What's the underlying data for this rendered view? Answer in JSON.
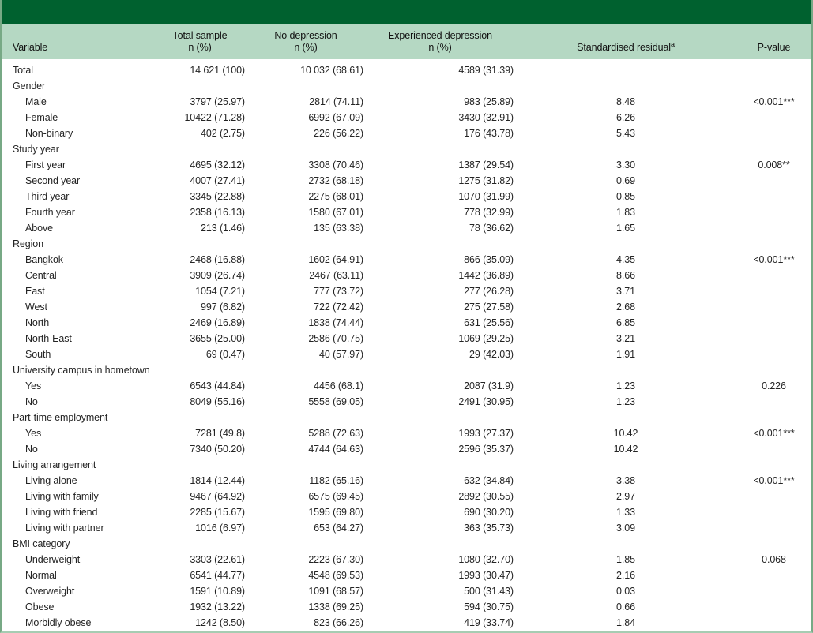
{
  "colors": {
    "top_bar_green": "#00612f",
    "header_green": "#b5d8c3",
    "border_green": "#77a985",
    "bottom_border_green": "#a6ccb2",
    "text": "#242424"
  },
  "table": {
    "header": {
      "variable": "Variable",
      "total_sample": "Total sample",
      "no_depression": "No depression",
      "experienced_depression": "Experienced depression",
      "n_pct": "n (%)",
      "residual": "Standardised residual",
      "residual_superscript": "a",
      "pvalue": "P-value"
    },
    "rows": [
      {
        "label": "Total",
        "indent": false,
        "group": false,
        "total": "14 621 (100)",
        "no_depression": "10 032 (68.61)",
        "experienced_depression": "4589 (31.39)",
        "residual": "",
        "p_value": ""
      },
      {
        "label": "Gender",
        "indent": false,
        "group": true,
        "total": "",
        "no_depression": "",
        "experienced_depression": "",
        "residual": "",
        "p_value": ""
      },
      {
        "label": "Male",
        "indent": true,
        "group": false,
        "total": "3797 (25.97)",
        "no_depression": "2814 (74.11)",
        "experienced_depression": "983 (25.89)",
        "residual": "8.48",
        "p_value": "<0.001***"
      },
      {
        "label": "Female",
        "indent": true,
        "group": false,
        "total": "10422 (71.28)",
        "no_depression": "6992 (67.09)",
        "experienced_depression": "3430 (32.91)",
        "residual": "6.26",
        "p_value": ""
      },
      {
        "label": "Non-binary",
        "indent": true,
        "group": false,
        "total": "402 (2.75)",
        "no_depression": "226 (56.22)",
        "experienced_depression": "176 (43.78)",
        "residual": "5.43",
        "p_value": ""
      },
      {
        "label": "Study year",
        "indent": false,
        "group": true,
        "total": "",
        "no_depression": "",
        "experienced_depression": "",
        "residual": "",
        "p_value": ""
      },
      {
        "label": "First year",
        "indent": true,
        "group": false,
        "total": "4695 (32.12)",
        "no_depression": "3308 (70.46)",
        "experienced_depression": "1387 (29.54)",
        "residual": "3.30",
        "p_value": "0.008**"
      },
      {
        "label": "Second year",
        "indent": true,
        "group": false,
        "total": "4007 (27.41)",
        "no_depression": "2732 (68.18)",
        "experienced_depression": "1275 (31.82)",
        "residual": "0.69",
        "p_value": ""
      },
      {
        "label": "Third year",
        "indent": true,
        "group": false,
        "total": "3345 (22.88)",
        "no_depression": "2275 (68.01)",
        "experienced_depression": "1070 (31.99)",
        "residual": "0.85",
        "p_value": ""
      },
      {
        "label": "Fourth year",
        "indent": true,
        "group": false,
        "total": "2358 (16.13)",
        "no_depression": "1580 (67.01)",
        "experienced_depression": "778 (32.99)",
        "residual": "1.83",
        "p_value": ""
      },
      {
        "label": "Above",
        "indent": true,
        "group": false,
        "total": "213 (1.46)",
        "no_depression": "135 (63.38)",
        "experienced_depression": "78 (36.62)",
        "residual": "1.65",
        "p_value": ""
      },
      {
        "label": "Region",
        "indent": false,
        "group": true,
        "total": "",
        "no_depression": "",
        "experienced_depression": "",
        "residual": "",
        "p_value": ""
      },
      {
        "label": "Bangkok",
        "indent": true,
        "group": false,
        "total": "2468 (16.88)",
        "no_depression": "1602 (64.91)",
        "experienced_depression": "866 (35.09)",
        "residual": "4.35",
        "p_value": "<0.001***"
      },
      {
        "label": "Central",
        "indent": true,
        "group": false,
        "total": "3909 (26.74)",
        "no_depression": "2467 (63.11)",
        "experienced_depression": "1442 (36.89)",
        "residual": "8.66",
        "p_value": ""
      },
      {
        "label": "East",
        "indent": true,
        "group": false,
        "total": "1054 (7.21)",
        "no_depression": "777 (73.72)",
        "experienced_depression": "277 (26.28)",
        "residual": "3.71",
        "p_value": ""
      },
      {
        "label": "West",
        "indent": true,
        "group": false,
        "total": "997 (6.82)",
        "no_depression": "722 (72.42)",
        "experienced_depression": "275 (27.58)",
        "residual": "2.68",
        "p_value": ""
      },
      {
        "label": "North",
        "indent": true,
        "group": false,
        "total": "2469 (16.89)",
        "no_depression": "1838 (74.44)",
        "experienced_depression": "631 (25.56)",
        "residual": "6.85",
        "p_value": ""
      },
      {
        "label": "North-East",
        "indent": true,
        "group": false,
        "total": "3655 (25.00)",
        "no_depression": "2586 (70.75)",
        "experienced_depression": "1069 (29.25)",
        "residual": "3.21",
        "p_value": ""
      },
      {
        "label": "South",
        "indent": true,
        "group": false,
        "total": "69 (0.47)",
        "no_depression": "40 (57.97)",
        "experienced_depression": "29 (42.03)",
        "residual": "1.91",
        "p_value": ""
      },
      {
        "label": "University campus in hometown",
        "indent": false,
        "group": true,
        "total": "",
        "no_depression": "",
        "experienced_depression": "",
        "residual": "",
        "p_value": ""
      },
      {
        "label": "Yes",
        "indent": true,
        "group": false,
        "total": "6543 (44.84)",
        "no_depression": "4456 (68.1)",
        "experienced_depression": "2087 (31.9)",
        "residual": "1.23",
        "p_value": "0.226"
      },
      {
        "label": "No",
        "indent": true,
        "group": false,
        "total": "8049 (55.16)",
        "no_depression": "5558 (69.05)",
        "experienced_depression": "2491 (30.95)",
        "residual": "1.23",
        "p_value": ""
      },
      {
        "label": "Part-time employment",
        "indent": false,
        "group": true,
        "total": "",
        "no_depression": "",
        "experienced_depression": "",
        "residual": "",
        "p_value": ""
      },
      {
        "label": "Yes",
        "indent": true,
        "group": false,
        "total": "7281 (49.8)",
        "no_depression": "5288 (72.63)",
        "experienced_depression": "1993 (27.37)",
        "residual": "10.42",
        "p_value": "<0.001***"
      },
      {
        "label": "No",
        "indent": true,
        "group": false,
        "total": "7340 (50.20)",
        "no_depression": "4744 (64.63)",
        "experienced_depression": "2596 (35.37)",
        "residual": "10.42",
        "p_value": ""
      },
      {
        "label": "Living arrangement",
        "indent": false,
        "group": true,
        "total": "",
        "no_depression": "",
        "experienced_depression": "",
        "residual": "",
        "p_value": ""
      },
      {
        "label": "Living alone",
        "indent": true,
        "group": false,
        "total": "1814 (12.44)",
        "no_depression": "1182 (65.16)",
        "experienced_depression": "632 (34.84)",
        "residual": "3.38",
        "p_value": "<0.001***"
      },
      {
        "label": "Living with family",
        "indent": true,
        "group": false,
        "total": "9467 (64.92)",
        "no_depression": "6575 (69.45)",
        "experienced_depression": "2892 (30.55)",
        "residual": "2.97",
        "p_value": ""
      },
      {
        "label": "Living with friend",
        "indent": true,
        "group": false,
        "total": "2285 (15.67)",
        "no_depression": "1595 (69.80)",
        "experienced_depression": "690 (30.20)",
        "residual": "1.33",
        "p_value": ""
      },
      {
        "label": "Living with partner",
        "indent": true,
        "group": false,
        "total": "1016 (6.97)",
        "no_depression": "653 (64.27)",
        "experienced_depression": "363 (35.73)",
        "residual": "3.09",
        "p_value": ""
      },
      {
        "label": "BMI category",
        "indent": false,
        "group": true,
        "total": "",
        "no_depression": "",
        "experienced_depression": "",
        "residual": "",
        "p_value": ""
      },
      {
        "label": "Underweight",
        "indent": true,
        "group": false,
        "total": "3303 (22.61)",
        "no_depression": "2223 (67.30)",
        "experienced_depression": "1080 (32.70)",
        "residual": "1.85",
        "p_value": "0.068"
      },
      {
        "label": "Normal",
        "indent": true,
        "group": false,
        "total": "6541 (44.77)",
        "no_depression": "4548 (69.53)",
        "experienced_depression": "1993 (30.47)",
        "residual": "2.16",
        "p_value": ""
      },
      {
        "label": "Overweight",
        "indent": true,
        "group": false,
        "total": "1591 (10.89)",
        "no_depression": "1091 (68.57)",
        "experienced_depression": "500 (31.43)",
        "residual": "0.03",
        "p_value": ""
      },
      {
        "label": "Obese",
        "indent": true,
        "group": false,
        "total": "1932 (13.22)",
        "no_depression": "1338 (69.25)",
        "experienced_depression": "594 (30.75)",
        "residual": "0.66",
        "p_value": ""
      },
      {
        "label": "Morbidly obese",
        "indent": true,
        "group": false,
        "total": "1242 (8.50)",
        "no_depression": "823 (66.26)",
        "experienced_depression": "419 (33.74)",
        "residual": "1.84",
        "p_value": ""
      }
    ]
  }
}
